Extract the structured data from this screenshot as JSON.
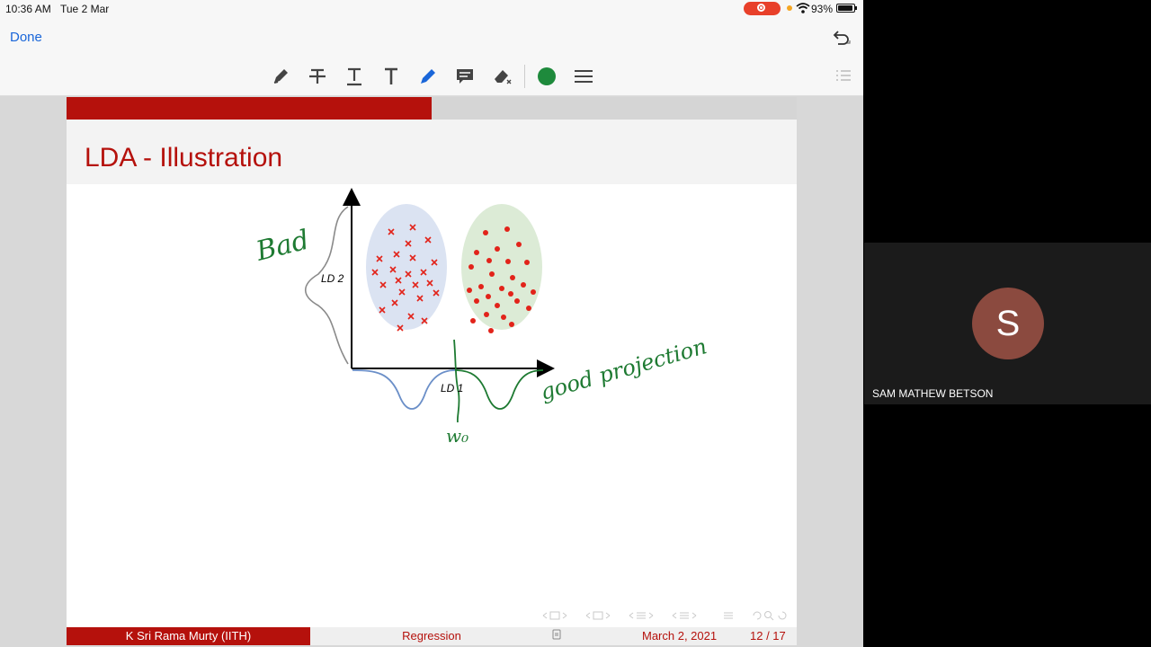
{
  "status_bar": {
    "time": "10:36 AM",
    "date": "Tue 2 Mar",
    "battery": "93%"
  },
  "nav": {
    "done_label": "Done"
  },
  "toolbar": {
    "tools": [
      "pencil-icon",
      "strikethrough-icon",
      "underline-icon",
      "text-icon",
      "pen-icon",
      "comment-icon",
      "eraser-icon",
      "color-icon",
      "menu-icon"
    ],
    "active_color": "#1e8a3c"
  },
  "slide": {
    "title": "LDA - Illustration",
    "progress": 0.5,
    "figure": {
      "y_axis_label": "LD 2",
      "x_axis_label": "LD 1",
      "annotation_bad": "Bad",
      "annotation_good": "good projection",
      "annotation_w": "w₀"
    },
    "footer": {
      "author": "K Sri Rama Murty  (IITH)",
      "topic": "Regression",
      "date": "March 2, 2021",
      "page": "12 / 17"
    }
  },
  "participant": {
    "initial": "S",
    "name": "SAM MATHEW BETSON"
  },
  "colors": {
    "accent_red": "#b5110c",
    "ink_green": "#1e7a32",
    "link_blue": "#1a66d9"
  }
}
